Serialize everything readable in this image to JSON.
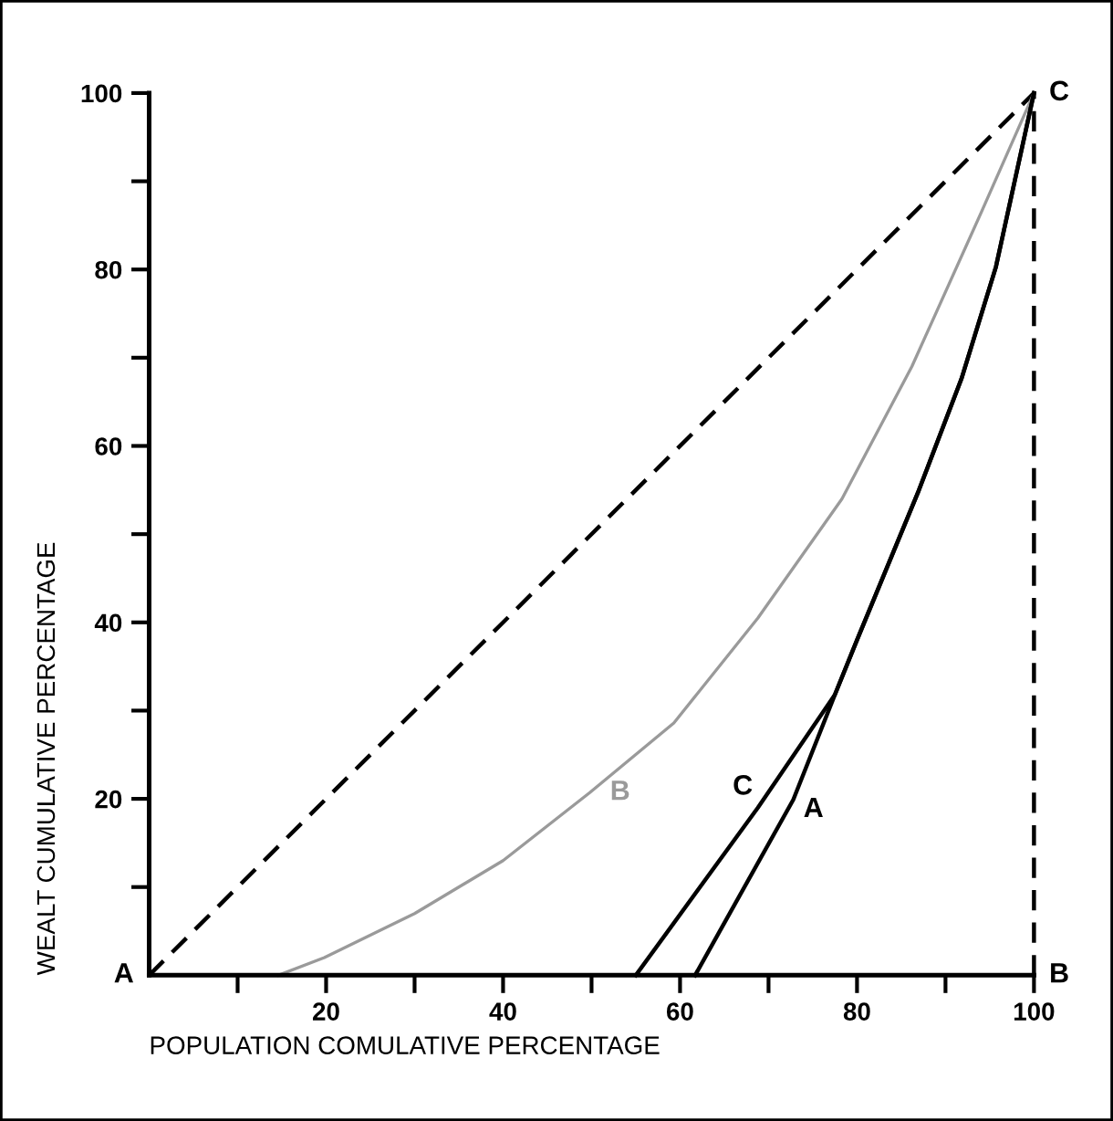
{
  "chart_data": {
    "type": "line",
    "xlabel": "POPULATION COMULATIVE PERCENTAGE",
    "ylabel": "WEALT CUMULATIVE PERCENTAGE",
    "xlim": [
      0,
      100
    ],
    "ylim": [
      0,
      100
    ],
    "xticks": [
      {
        "value": 10,
        "label": null
      },
      20,
      {
        "value": 30,
        "label": null
      },
      40,
      {
        "value": 50,
        "label": null
      },
      60,
      {
        "value": 70,
        "label": null
      },
      80,
      {
        "value": 90,
        "label": null
      },
      100
    ],
    "yticks": [
      {
        "value": 10,
        "label": null
      },
      20,
      {
        "value": 30,
        "label": null
      },
      40,
      {
        "value": 50,
        "label": null
      },
      60,
      {
        "value": 70,
        "label": null
      },
      80,
      {
        "value": 90,
        "label": null
      },
      100
    ],
    "ref_lines": [
      {
        "axis": "x",
        "value": 100,
        "color": "#000000",
        "line_style": "dashed"
      }
    ],
    "grid": false,
    "legend": false,
    "marker": "none",
    "series": [
      {
        "color": "#000000",
        "line_style": "dashed",
        "x": [
          0,
          100
        ],
        "values": [
          0,
          100
        ]
      },
      {
        "color": "#9a9a9a",
        "line_style": "solid",
        "x": [
          14.6,
          19.8,
          30,
          40,
          49.8,
          59.3,
          68.8,
          78.3,
          86.2,
          94.1,
          100
        ],
        "values": [
          0,
          2,
          7,
          13,
          20.7,
          28.6,
          40.5,
          54,
          69,
          86.6,
          100
        ]
      },
      {
        "color": "#000000",
        "line_style": "solid",
        "x": [
          55,
          68.8,
          77.5,
          80,
          87,
          91.8,
          95.7,
          100
        ],
        "values": [
          0,
          19,
          31.8,
          38,
          55,
          67.6,
          80.3,
          100
        ]
      },
      {
        "color": "#000000",
        "line_style": "solid",
        "x": [
          61.7,
          72.8,
          77.5,
          80,
          87,
          91.8,
          95.7,
          100
        ],
        "values": [
          0,
          19.9,
          31.8,
          38,
          55,
          67.6,
          80.3,
          100
        ]
      }
    ],
    "annotations": [
      {
        "text": "A",
        "x": 0,
        "y": 0
      },
      {
        "text": "B",
        "x": 100,
        "y": 0
      },
      {
        "text": "C",
        "x": 100,
        "y": 100
      },
      {
        "text": "B",
        "x": 49.8,
        "y": 20.7
      },
      {
        "text": "C",
        "x": 68.8,
        "y": 19
      },
      {
        "text": "A",
        "x": 72.8,
        "y": 19.9
      }
    ]
  }
}
